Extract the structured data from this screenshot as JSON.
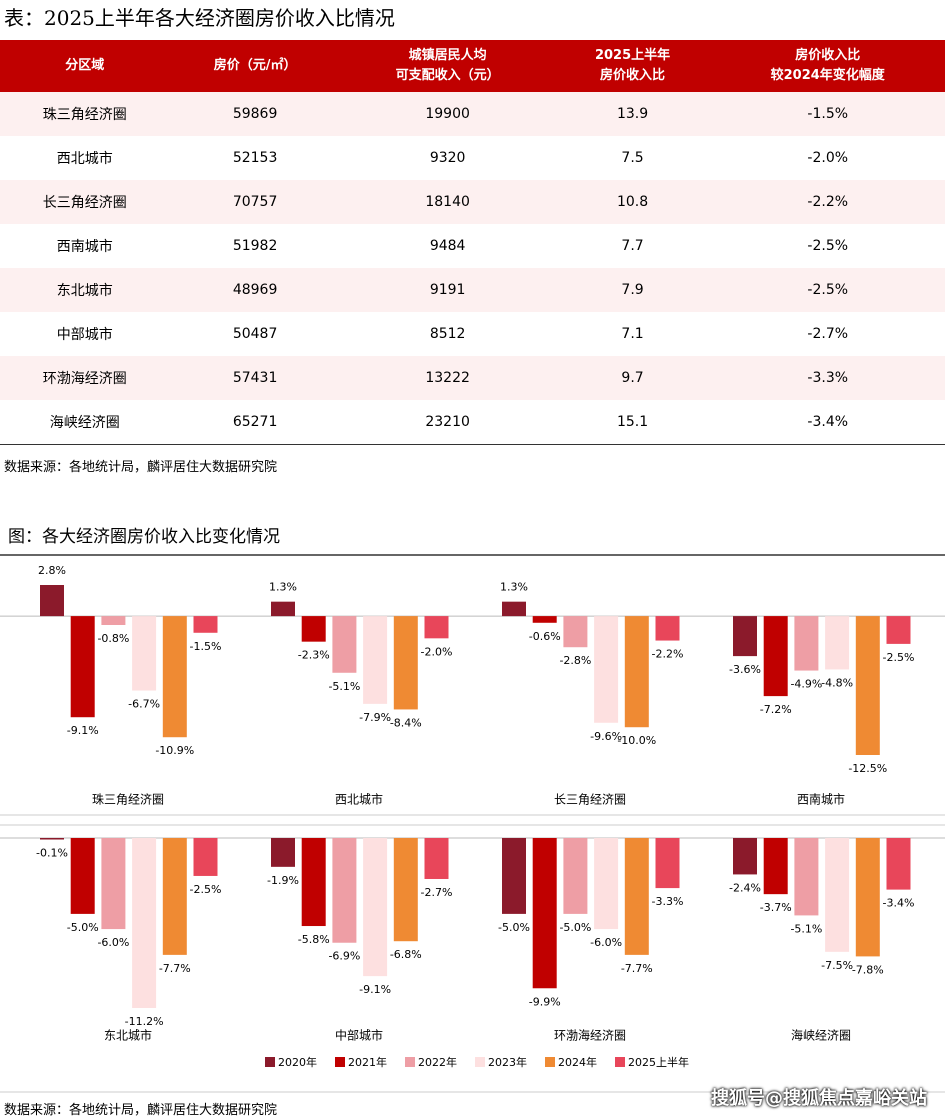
{
  "table": {
    "title": "表：2025上半年各大经济圈房价收入比情况",
    "header": [
      "分区域",
      "房价（元/㎡）",
      "城镇居民人均\n可支配收入（元）",
      "2025上半年\n房价收入比",
      "房价收入比\n较2024年变化幅度"
    ],
    "rows": [
      [
        "珠三角经济圈",
        "59869",
        "19900",
        "13.9",
        "-1.5%"
      ],
      [
        "西北城市",
        "52153",
        "9320",
        "7.5",
        "-2.0%"
      ],
      [
        "长三角经济圈",
        "70757",
        "18140",
        "10.8",
        "-2.2%"
      ],
      [
        "西南城市",
        "51982",
        "9484",
        "7.7",
        "-2.5%"
      ],
      [
        "东北城市",
        "48969",
        "9191",
        "7.9",
        "-2.5%"
      ],
      [
        "中部城市",
        "50487",
        "8512",
        "7.1",
        "-2.7%"
      ],
      [
        "环渤海经济圈",
        "57431",
        "13222",
        "9.7",
        "-3.3%"
      ],
      [
        "海峡经济圈",
        "65271",
        "23210",
        "15.1",
        "-3.4%"
      ]
    ],
    "source": "数据来源：各地统计局，麟评居住大数据研究院"
  },
  "chart_data": {
    "type": "bar",
    "title": "图：各大经济圈房价收入比变化情况",
    "categories": [
      "珠三角经济圈",
      "西北城市",
      "长三角经济圈",
      "西南城市",
      "东北城市",
      "中部城市",
      "环渤海经济圈",
      "海峡经济圈"
    ],
    "series": [
      {
        "name": "2020年",
        "color": "#8b1a2b",
        "values": [
          2.8,
          1.3,
          1.3,
          -3.6,
          -0.1,
          -1.9,
          -5.0,
          -2.4
        ],
        "value_labels": [
          "2.8%",
          "1.3%",
          "1.3%",
          "-3.6%",
          "-0.1%",
          "-1.9%",
          "-5.0%",
          "-2.4%"
        ]
      },
      {
        "name": "2021年",
        "color": "#c00000",
        "values": [
          -9.1,
          -2.3,
          -0.6,
          -7.2,
          -5.0,
          -5.8,
          -9.9,
          -3.7
        ],
        "value_labels": [
          "-9.1%",
          "-2.3%",
          "-0.6%",
          "-7.2%",
          "-5.0%",
          "-5.8%",
          "-9.9%",
          "-3.7%"
        ]
      },
      {
        "name": "2022年",
        "color": "#ee9ea5",
        "values": [
          -0.8,
          -5.1,
          -2.8,
          -4.9,
          -6.0,
          -6.9,
          -5.0,
          -5.1
        ],
        "value_labels": [
          "-0.8%",
          "-5.1%",
          "-2.8%",
          "-4.9%",
          "-6.0%",
          "-6.9%",
          "-5.0%",
          "-5.1%"
        ]
      },
      {
        "name": "2023年",
        "color": "#fde0e0",
        "values": [
          -6.7,
          -7.9,
          -9.6,
          -4.8,
          -11.2,
          -9.1,
          -6.0,
          -7.5
        ],
        "value_labels": [
          "-6.7%",
          "-7.9%",
          "-9.6%",
          "-4.8%",
          "-11.2%",
          "-9.1%",
          "-6.0%",
          "-7.5%"
        ]
      },
      {
        "name": "2024年",
        "color": "#ef8a33",
        "values": [
          -10.9,
          -8.4,
          -10.0,
          -12.5,
          -7.7,
          -6.8,
          -7.7,
          -7.8
        ],
        "value_labels": [
          "-10.9%",
          "-8.4%",
          "-10.0%",
          "-12.5%",
          "-7.7%",
          "-6.8%",
          "-7.7%",
          "-7.8%"
        ]
      },
      {
        "name": "2025上半年",
        "color": "#e8465a",
        "values": [
          -1.5,
          -2.0,
          -2.2,
          -2.5,
          -2.5,
          -2.7,
          -3.3,
          -3.4
        ],
        "value_labels": [
          "-1.5%",
          "-2.0%",
          "-2.2%",
          "-2.5%",
          "-2.5%",
          "-2.7%",
          "-3.3%",
          "-3.4%"
        ]
      }
    ],
    "source": "数据来源：各地统计局，麟评居住大数据研究院"
  },
  "watermark": "搜狐号@搜狐焦点嘉峪关站"
}
